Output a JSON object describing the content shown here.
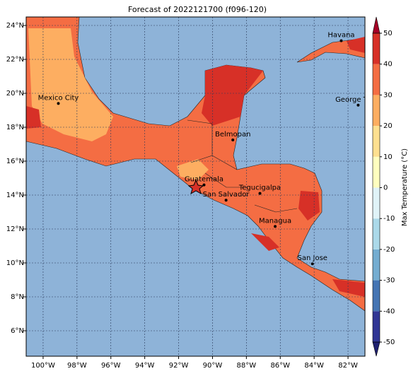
{
  "title": "Forecast of 2022121700 (f096-120)",
  "map": {
    "xlim": [
      -101,
      -81
    ],
    "ylim": [
      4.5,
      24.5
    ],
    "xticks": [
      {
        "value": -100,
        "label": "100°W"
      },
      {
        "value": -98,
        "label": "98°W"
      },
      {
        "value": -96,
        "label": "96°W"
      },
      {
        "value": -94,
        "label": "94°W"
      },
      {
        "value": -92,
        "label": "92°W"
      },
      {
        "value": -90,
        "label": "90°W"
      },
      {
        "value": -88,
        "label": "88°W"
      },
      {
        "value": -86,
        "label": "86°W"
      },
      {
        "value": -84,
        "label": "84°W"
      },
      {
        "value": -82,
        "label": "82°W"
      }
    ],
    "yticks": [
      {
        "value": 6,
        "label": "6°N"
      },
      {
        "value": 8,
        "label": "8°N"
      },
      {
        "value": 10,
        "label": "10°N"
      },
      {
        "value": 12,
        "label": "12°N"
      },
      {
        "value": 14,
        "label": "14°N"
      },
      {
        "value": 16,
        "label": "16°N"
      },
      {
        "value": 18,
        "label": "18°N"
      },
      {
        "value": 20,
        "label": "20°N"
      },
      {
        "value": 22,
        "label": "22°N"
      },
      {
        "value": 24,
        "label": "24°N"
      }
    ],
    "grid": true,
    "cities": [
      {
        "name": "Mexico City",
        "lon": -99.1,
        "lat": 19.4
      },
      {
        "name": "Havana",
        "lon": -82.4,
        "lat": 23.1
      },
      {
        "name": "George Town",
        "lon": -81.4,
        "lat": 19.3
      },
      {
        "name": "Belmopan",
        "lon": -88.8,
        "lat": 17.25
      },
      {
        "name": "Guatemala",
        "lon": -90.5,
        "lat": 14.6
      },
      {
        "name": "San Salvador",
        "lon": -89.2,
        "lat": 13.7
      },
      {
        "name": "Tegucigalpa",
        "lon": -87.2,
        "lat": 14.1
      },
      {
        "name": "Managua",
        "lon": -86.3,
        "lat": 12.15
      },
      {
        "name": "San Jose",
        "lon": -84.1,
        "lat": 9.95
      }
    ]
  },
  "colorbar": {
    "label": "Max Temperature (°C)",
    "lim": [
      -50,
      50
    ],
    "ticks": [
      -50,
      -40,
      -30,
      -20,
      -10,
      0,
      10,
      20,
      30,
      40,
      50
    ],
    "colors": [
      "#313695",
      "#4575b4",
      "#74add1",
      "#abd9e9",
      "#e0f3f8",
      "#ffffbf",
      "#fee090",
      "#fdae61",
      "#f46d43",
      "#d73027"
    ],
    "under_color": "#1f2070",
    "over_color": "#a50026"
  }
}
